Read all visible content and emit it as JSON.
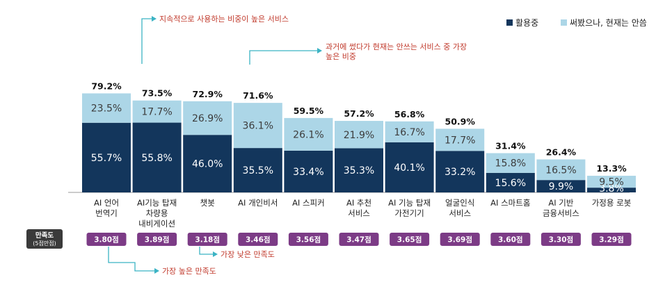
{
  "colors": {
    "using": "#13365c",
    "used_before": "#acd6e7",
    "score_pill": "#7c3b86",
    "satisfaction_box": "#3a3a3a",
    "annotation_text": "#c0392b",
    "annotation_line": "#3bb3c4"
  },
  "legend": {
    "position": "top-right",
    "items": [
      {
        "label": "활용중",
        "color": "#13365c"
      },
      {
        "label": "써봤으나, 현재는 안씀",
        "color": "#acd6e7"
      }
    ]
  },
  "satisfaction_label": {
    "line1": "만족도",
    "line2": "(5점만점)"
  },
  "annotations": {
    "top_left": "지속적으로 사용하는 비중이 높은 서비스",
    "top_right_line1": "과거에 썼다가 현재는 안쓰는 서비스 중 가장",
    "top_right_line2": "높은 비중",
    "bottom_high": "가장 높은 만족도",
    "bottom_low": "가장 낮은 만족도"
  },
  "chart_data": {
    "type": "bar",
    "stacked": true,
    "categories": [
      [
        "AI 언어",
        "번역기"
      ],
      [
        "AI기능 탑재",
        "차량용",
        "내비게이션"
      ],
      [
        "챗봇"
      ],
      [
        "AI 개인비서"
      ],
      [
        "AI 스피커"
      ],
      [
        "AI 추천",
        "서비스"
      ],
      [
        "AI 기능 탑재",
        "가전기기"
      ],
      [
        "얼굴인식",
        "서비스"
      ],
      [
        "AI 스마트홈"
      ],
      [
        "AI 기반",
        "금융서비스"
      ],
      [
        "가정용 로봇"
      ]
    ],
    "series": [
      {
        "name": "활용중",
        "values": [
          55.7,
          55.8,
          46.0,
          35.5,
          33.4,
          35.3,
          40.1,
          33.2,
          15.6,
          9.9,
          3.8
        ]
      },
      {
        "name": "써봤으나, 현재는 안씀",
        "values": [
          23.5,
          17.7,
          26.9,
          36.1,
          26.1,
          21.9,
          16.7,
          17.7,
          15.8,
          16.5,
          9.5
        ]
      }
    ],
    "using_labels": [
      "55.7%",
      "55.8%",
      "46.0%",
      "35.5%",
      "33.4%",
      "35.3%",
      "40.1%",
      "33.2%",
      "15.6%",
      "9.9%",
      "3.8%"
    ],
    "used_before_labels": [
      "23.5%",
      "17.7%",
      "26.9%",
      "36.1%",
      "26.1%",
      "21.9%",
      "16.7%",
      "17.7%",
      "15.8%",
      "16.5%",
      "9.5%"
    ],
    "totals": [
      "79.2%",
      "73.5%",
      "72.9%",
      "71.6%",
      "59.5%",
      "57.2%",
      "56.8%",
      "50.9%",
      "31.4%",
      "26.4%",
      "13.3%"
    ],
    "satisfaction": [
      "3.80점",
      "3.89점",
      "3.18점",
      "3.46점",
      "3.56점",
      "3.47점",
      "3.65점",
      "3.69점",
      "3.60점",
      "3.30점",
      "3.29점"
    ],
    "ylim": [
      0,
      100
    ],
    "grid": false
  }
}
